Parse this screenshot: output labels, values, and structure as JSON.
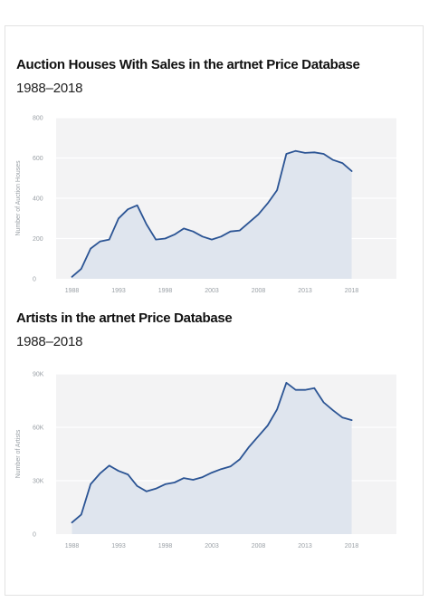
{
  "chart_data": [
    {
      "type": "area",
      "title": "Auction Houses With Sales in the artnet Price Database",
      "subtitle": "1988–2018",
      "ylabel": "Number of Auction Houses",
      "xlabel": "",
      "ylim": [
        0,
        800
      ],
      "xlim": [
        1986.3,
        2022.8
      ],
      "yticks": [
        0,
        200,
        400,
        600,
        800
      ],
      "ytick_labels": [
        "0",
        "200",
        "400",
        "600",
        "800"
      ],
      "xticks": [
        1988,
        1993,
        1998,
        2003,
        2008,
        2013,
        2018
      ],
      "xtick_labels": [
        "1988",
        "1993",
        "1998",
        "2003",
        "2008",
        "2013",
        "2018"
      ],
      "grid": true,
      "colors": {
        "line": "#2b5494",
        "fill": "#dfe5ee",
        "plot_bg": "#f3f3f4",
        "grid": "#ffffff"
      },
      "series": [
        {
          "x": [
            1988,
            1989,
            1990,
            1991,
            1992,
            1993,
            1994,
            1995,
            1996,
            1997,
            1998,
            1999,
            2000,
            2001,
            2002,
            2003,
            2004,
            2005,
            2006,
            2007,
            2008,
            2009,
            2010,
            2011,
            2012,
            2013,
            2014,
            2015,
            2016,
            2017,
            2018
          ],
          "values": [
            10,
            50,
            150,
            185,
            195,
            300,
            345,
            365,
            270,
            195,
            200,
            220,
            250,
            235,
            210,
            195,
            210,
            235,
            240,
            280,
            320,
            375,
            440,
            620,
            635,
            625,
            628,
            620,
            590,
            575,
            535
          ]
        }
      ]
    },
    {
      "type": "area",
      "title": "Artists in the artnet Price Database",
      "subtitle": "1988–2018",
      "ylabel": "Number of Artists",
      "xlabel": "",
      "ylim": [
        0,
        90000
      ],
      "xlim": [
        1986.3,
        2022.8
      ],
      "yticks": [
        0,
        30000,
        60000,
        90000
      ],
      "ytick_labels": [
        "0",
        "30K",
        "60K",
        "90K"
      ],
      "xticks": [
        1988,
        1993,
        1998,
        2003,
        2008,
        2013,
        2018
      ],
      "xtick_labels": [
        "1988",
        "1993",
        "1998",
        "2003",
        "2008",
        "2013",
        "2018"
      ],
      "grid": true,
      "colors": {
        "line": "#2b5494",
        "fill": "#dfe5ee",
        "plot_bg": "#f3f3f4",
        "grid": "#ffffff"
      },
      "series": [
        {
          "x": [
            1988,
            1989,
            1990,
            1991,
            1992,
            1993,
            1994,
            1995,
            1996,
            1997,
            1998,
            1999,
            2000,
            2001,
            2002,
            2003,
            2004,
            2005,
            2006,
            2007,
            2008,
            2009,
            2010,
            2011,
            2012,
            2013,
            2014,
            2015,
            2016,
            2017,
            2018
          ],
          "values": [
            6500,
            11000,
            28000,
            34000,
            38500,
            35500,
            33500,
            27000,
            24000,
            25500,
            28000,
            29000,
            31500,
            30500,
            32000,
            34500,
            36500,
            38000,
            42000,
            49000,
            55000,
            61000,
            70000,
            85000,
            81000,
            81000,
            82000,
            74000,
            69500,
            65500,
            64000
          ]
        }
      ]
    }
  ]
}
